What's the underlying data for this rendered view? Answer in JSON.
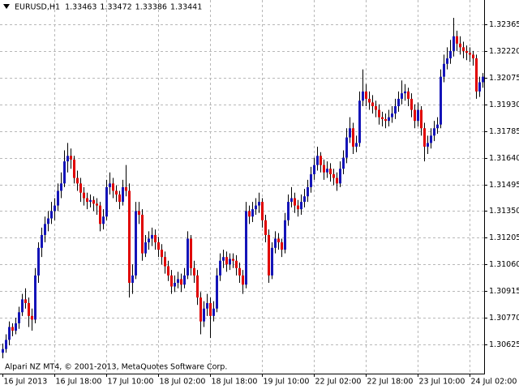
{
  "chart_data": {
    "type": "candlestick",
    "title": "EURUSD,H1",
    "last_quote": [
      1.33463,
      1.33472,
      1.33386,
      1.33441
    ],
    "annotation": "Alpari NZ MT4, © 2001-2013, MetaQuotes Software Corp.",
    "x_labels": [
      "16 Jul 2013",
      "16 Jul 18:00",
      "17 Jul 10:00",
      "18 Jul 02:00",
      "18 Jul 18:00",
      "19 Jul 10:00",
      "22 Jul 02:00",
      "22 Jul 18:00",
      "23 Jul 10:00",
      "24 Jul 02:00"
    ],
    "ylim": [
      1.30471,
      1.32497
    ],
    "yticks": [
      1.32365,
      {
        "value": 1.3222,
        "label": "1.32220"
      },
      1.32075,
      {
        "value": 1.3193,
        "label": "1.31930"
      },
      1.31785,
      {
        "value": 1.3164,
        "label": "1.31640"
      },
      1.31495,
      {
        "value": 1.3135,
        "label": "1.31350"
      },
      1.31205,
      {
        "value": 1.3106,
        "label": "1.31060"
      },
      1.30915,
      {
        "value": 1.3077,
        "label": "1.30770"
      },
      1.30625
    ],
    "grid": true,
    "up_color": "#1414b8",
    "down_color": "#e00000",
    "wick_color": "#000000",
    "candles": [
      [
        1.3058,
        1.3063,
        1.3055,
        1.306
      ],
      [
        1.306,
        1.3068,
        1.3058,
        1.3065
      ],
      [
        1.3065,
        1.3075,
        1.3062,
        1.3072
      ],
      [
        1.3072,
        1.3074,
        1.3067,
        1.307
      ],
      [
        1.307,
        1.3077,
        1.3068,
        1.3074
      ],
      [
        1.3074,
        1.3083,
        1.3071,
        1.308
      ],
      [
        1.308,
        1.309,
        1.3078,
        1.3087
      ],
      [
        1.3087,
        1.3093,
        1.3082,
        1.3085
      ],
      [
        1.3085,
        1.3088,
        1.3072,
        1.3078
      ],
      [
        1.3078,
        1.3082,
        1.307,
        1.3076
      ],
      [
        1.3076,
        1.3104,
        1.3074,
        1.31
      ],
      [
        1.31,
        1.3118,
        1.3096,
        1.3115
      ],
      [
        1.3115,
        1.3126,
        1.311,
        1.3122
      ],
      [
        1.3122,
        1.3132,
        1.3118,
        1.3128
      ],
      [
        1.3128,
        1.3135,
        1.3124,
        1.3131
      ],
      [
        1.3131,
        1.314,
        1.3128,
        1.3135
      ],
      [
        1.3135,
        1.3142,
        1.313,
        1.3138
      ],
      [
        1.3138,
        1.315,
        1.3135,
        1.3146
      ],
      [
        1.3146,
        1.3156,
        1.3142,
        1.315
      ],
      [
        1.315,
        1.3168,
        1.3148,
        1.3162
      ],
      [
        1.3162,
        1.3172,
        1.3156,
        1.3165
      ],
      [
        1.3165,
        1.3169,
        1.3158,
        1.3163
      ],
      [
        1.3163,
        1.3165,
        1.315,
        1.3153
      ],
      [
        1.3153,
        1.3157,
        1.3146,
        1.315
      ],
      [
        1.315,
        1.3153,
        1.314,
        1.3145
      ],
      [
        1.3145,
        1.3148,
        1.3138,
        1.3142
      ],
      [
        1.3142,
        1.3145,
        1.3136,
        1.314
      ],
      [
        1.314,
        1.3144,
        1.3137,
        1.3141
      ],
      [
        1.3141,
        1.3143,
        1.3135,
        1.3139
      ],
      [
        1.3139,
        1.3142,
        1.3133,
        1.3138
      ],
      [
        1.3138,
        1.314,
        1.3124,
        1.3128
      ],
      [
        1.3128,
        1.3136,
        1.3125,
        1.3132
      ],
      [
        1.3132,
        1.3152,
        1.313,
        1.3148
      ],
      [
        1.3148,
        1.3156,
        1.3144,
        1.315
      ],
      [
        1.315,
        1.3153,
        1.3142,
        1.3146
      ],
      [
        1.3146,
        1.3149,
        1.314,
        1.3144
      ],
      [
        1.3144,
        1.3146,
        1.3136,
        1.314
      ],
      [
        1.314,
        1.3152,
        1.3138,
        1.3148
      ],
      [
        1.3148,
        1.316,
        1.3143,
        1.3146
      ],
      [
        1.3146,
        1.315,
        1.3088,
        1.3096
      ],
      [
        1.3096,
        1.3106,
        1.309,
        1.31
      ],
      [
        1.31,
        1.314,
        1.3098,
        1.3135
      ],
      [
        1.3135,
        1.314,
        1.3128,
        1.3133
      ],
      [
        1.3133,
        1.3136,
        1.3108,
        1.3112
      ],
      [
        1.3112,
        1.3122,
        1.311,
        1.3118
      ],
      [
        1.3118,
        1.3124,
        1.3114,
        1.312
      ],
      [
        1.312,
        1.3126,
        1.3116,
        1.3122
      ],
      [
        1.3122,
        1.3125,
        1.3114,
        1.3118
      ],
      [
        1.3118,
        1.3121,
        1.311,
        1.3114
      ],
      [
        1.3114,
        1.3117,
        1.3106,
        1.311
      ],
      [
        1.311,
        1.3113,
        1.3101,
        1.3105
      ],
      [
        1.3105,
        1.3108,
        1.3097,
        1.31
      ],
      [
        1.31,
        1.3103,
        1.309,
        1.3094
      ],
      [
        1.3094,
        1.31,
        1.3091,
        1.3096
      ],
      [
        1.3096,
        1.3102,
        1.3093,
        1.3098
      ],
      [
        1.3098,
        1.3101,
        1.3091,
        1.3095
      ],
      [
        1.3095,
        1.3104,
        1.3093,
        1.31
      ],
      [
        1.31,
        1.3124,
        1.3098,
        1.312
      ],
      [
        1.312,
        1.3122,
        1.31,
        1.3104
      ],
      [
        1.3104,
        1.3108,
        1.3096,
        1.31
      ],
      [
        1.31,
        1.3103,
        1.3084,
        1.3088
      ],
      [
        1.3088,
        1.3091,
        1.3068,
        1.3075
      ],
      [
        1.3075,
        1.3086,
        1.3072,
        1.3082
      ],
      [
        1.3082,
        1.309,
        1.3078,
        1.3085
      ],
      [
        1.3085,
        1.3088,
        1.3066,
        1.3078
      ],
      [
        1.3078,
        1.3086,
        1.3075,
        1.3082
      ],
      [
        1.3082,
        1.3104,
        1.308,
        1.31
      ],
      [
        1.31,
        1.3112,
        1.3097,
        1.3108
      ],
      [
        1.3108,
        1.3114,
        1.3104,
        1.311
      ],
      [
        1.311,
        1.3113,
        1.3102,
        1.3106
      ],
      [
        1.3106,
        1.3112,
        1.3103,
        1.3109
      ],
      [
        1.3109,
        1.3112,
        1.3104,
        1.3108
      ],
      [
        1.3108,
        1.3111,
        1.31,
        1.3104
      ],
      [
        1.3104,
        1.3107,
        1.3096,
        1.31
      ],
      [
        1.31,
        1.3103,
        1.309,
        1.3095
      ],
      [
        1.3095,
        1.314,
        1.3093,
        1.3135
      ],
      [
        1.3135,
        1.3138,
        1.3128,
        1.3132
      ],
      [
        1.3132,
        1.314,
        1.3129,
        1.3136
      ],
      [
        1.3136,
        1.3142,
        1.3133,
        1.3138
      ],
      [
        1.3138,
        1.3145,
        1.3134,
        1.314
      ],
      [
        1.314,
        1.3142,
        1.3126,
        1.313
      ],
      [
        1.313,
        1.3133,
        1.3118,
        1.3122
      ],
      [
        1.3122,
        1.3125,
        1.3096,
        1.31
      ],
      [
        1.31,
        1.3118,
        1.3098,
        1.3115
      ],
      [
        1.3115,
        1.3124,
        1.3112,
        1.312
      ],
      [
        1.312,
        1.3123,
        1.3114,
        1.3118
      ],
      [
        1.3118,
        1.312,
        1.311,
        1.3114
      ],
      [
        1.3114,
        1.3134,
        1.3112,
        1.313
      ],
      [
        1.313,
        1.3144,
        1.3127,
        1.314
      ],
      [
        1.314,
        1.3148,
        1.3137,
        1.3142
      ],
      [
        1.3142,
        1.3145,
        1.3134,
        1.3138
      ],
      [
        1.3138,
        1.3141,
        1.3132,
        1.3136
      ],
      [
        1.3136,
        1.3144,
        1.3133,
        1.314
      ],
      [
        1.314,
        1.3147,
        1.3137,
        1.3143
      ],
      [
        1.3143,
        1.3152,
        1.314,
        1.3148
      ],
      [
        1.3148,
        1.3159,
        1.3145,
        1.3155
      ],
      [
        1.3155,
        1.3164,
        1.3152,
        1.316
      ],
      [
        1.316,
        1.317,
        1.3157,
        1.3165
      ],
      [
        1.3165,
        1.3167,
        1.3156,
        1.316
      ],
      [
        1.316,
        1.3163,
        1.3152,
        1.3156
      ],
      [
        1.3156,
        1.3162,
        1.3153,
        1.3158
      ],
      [
        1.3158,
        1.3161,
        1.3151,
        1.3155
      ],
      [
        1.3155,
        1.3158,
        1.3149,
        1.3153
      ],
      [
        1.3153,
        1.3156,
        1.3146,
        1.315
      ],
      [
        1.315,
        1.3162,
        1.3148,
        1.3158
      ],
      [
        1.3158,
        1.3168,
        1.3155,
        1.3164
      ],
      [
        1.3164,
        1.318,
        1.3161,
        1.3175
      ],
      [
        1.3175,
        1.3186,
        1.3172,
        1.318
      ],
      [
        1.318,
        1.3183,
        1.3166,
        1.317
      ],
      [
        1.317,
        1.3176,
        1.3167,
        1.3172
      ],
      [
        1.3172,
        1.32,
        1.317,
        1.3195
      ],
      [
        1.3195,
        1.3212,
        1.3192,
        1.32
      ],
      [
        1.32,
        1.3204,
        1.3192,
        1.3196
      ],
      [
        1.3196,
        1.32,
        1.319,
        1.3194
      ],
      [
        1.3194,
        1.3198,
        1.3188,
        1.3192
      ],
      [
        1.3192,
        1.3195,
        1.3186,
        1.319
      ],
      [
        1.319,
        1.3193,
        1.3182,
        1.3186
      ],
      [
        1.3186,
        1.3189,
        1.3181,
        1.3185
      ],
      [
        1.3185,
        1.3188,
        1.318,
        1.3184
      ],
      [
        1.3184,
        1.319,
        1.3181,
        1.3186
      ],
      [
        1.3186,
        1.3192,
        1.3183,
        1.3188
      ],
      [
        1.3188,
        1.3196,
        1.3185,
        1.3192
      ],
      [
        1.3192,
        1.32,
        1.3189,
        1.3196
      ],
      [
        1.3196,
        1.3206,
        1.3193,
        1.3199
      ],
      [
        1.3199,
        1.3204,
        1.3195,
        1.32
      ],
      [
        1.32,
        1.3202,
        1.3192,
        1.3196
      ],
      [
        1.3196,
        1.3199,
        1.3186,
        1.319
      ],
      [
        1.319,
        1.3193,
        1.318,
        1.3184
      ],
      [
        1.3184,
        1.3194,
        1.3181,
        1.319
      ],
      [
        1.319,
        1.3192,
        1.3176,
        1.318
      ],
      [
        1.318,
        1.3183,
        1.3162,
        1.317
      ],
      [
        1.317,
        1.3176,
        1.3166,
        1.3172
      ],
      [
        1.3172,
        1.318,
        1.3169,
        1.3176
      ],
      [
        1.3176,
        1.3184,
        1.3173,
        1.318
      ],
      [
        1.318,
        1.3186,
        1.3177,
        1.3182
      ],
      [
        1.3182,
        1.3212,
        1.318,
        1.3208
      ],
      [
        1.3208,
        1.322,
        1.3205,
        1.3215
      ],
      [
        1.3215,
        1.3224,
        1.3212,
        1.3218
      ],
      [
        1.3218,
        1.3228,
        1.3215,
        1.3222
      ],
      [
        1.3222,
        1.324,
        1.3219,
        1.323
      ],
      [
        1.323,
        1.3233,
        1.3222,
        1.3226
      ],
      [
        1.3226,
        1.323,
        1.322,
        1.3224
      ],
      [
        1.3224,
        1.3227,
        1.3218,
        1.3222
      ],
      [
        1.3222,
        1.3225,
        1.3217,
        1.3221
      ],
      [
        1.3221,
        1.3224,
        1.3216,
        1.322
      ],
      [
        1.322,
        1.3222,
        1.3214,
        1.3218
      ],
      [
        1.3218,
        1.322,
        1.3196,
        1.32
      ],
      [
        1.32,
        1.3208,
        1.3197,
        1.3205
      ],
      [
        1.3205,
        1.321,
        1.3202,
        1.3208
      ]
    ]
  }
}
